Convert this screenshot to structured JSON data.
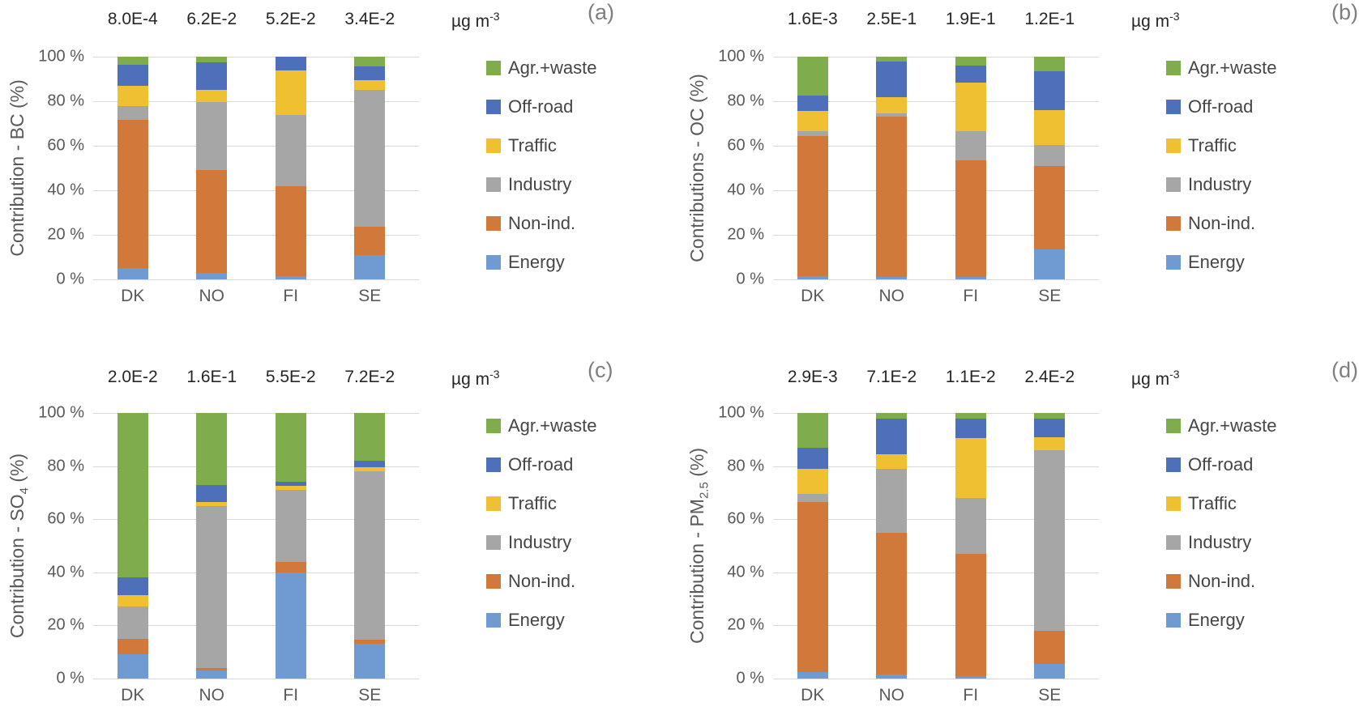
{
  "palette": {
    "energy": "#6F9BD2",
    "non_ind": "#D0793B",
    "industry": "#A6A6A6",
    "traffic": "#EFC032",
    "off_road": "#4E6FB9",
    "agr_waste": "#7FAD4C"
  },
  "unit": {
    "base": "µg m",
    "sup": "-3"
  },
  "y_axis": {
    "ticks": [
      0,
      20,
      40,
      60,
      80,
      100
    ],
    "tick_labels": [
      "0 %",
      "20 %",
      "40 %",
      "60 %",
      "80 %",
      "100 %"
    ]
  },
  "legend": {
    "position": "right",
    "items": [
      {
        "key": "agr_waste",
        "label": "Agr.+waste"
      },
      {
        "key": "off_road",
        "label": "Off-road"
      },
      {
        "key": "traffic",
        "label": "Traffic"
      },
      {
        "key": "industry",
        "label": "Industry"
      },
      {
        "key": "non_ind",
        "label": "Non-ind."
      },
      {
        "key": "energy",
        "label": "Energy"
      }
    ]
  },
  "chart_data": [
    {
      "id": "a",
      "type": "bar",
      "stacked": true,
      "panel_label": "(a)",
      "ylabel_parts": [
        {
          "text": "Contribution - BC (%)"
        }
      ],
      "categories": [
        "DK",
        "NO",
        "FI",
        "SE"
      ],
      "concentrations": [
        "8.0E-4",
        "6.2E-2",
        "5.2E-2",
        "3.4E-2"
      ],
      "ylim": [
        0,
        100
      ],
      "grid": true,
      "series": [
        {
          "key": "energy",
          "name": "Energy",
          "values": [
            5,
            3,
            1.5,
            11
          ]
        },
        {
          "key": "non_ind",
          "name": "Non-ind.",
          "values": [
            66.5,
            46,
            40.5,
            12.5
          ]
        },
        {
          "key": "industry",
          "name": "Industry",
          "values": [
            6.5,
            30.5,
            32,
            61.5
          ]
        },
        {
          "key": "traffic",
          "name": "Traffic",
          "values": [
            9,
            5.5,
            20,
            4.5
          ]
        },
        {
          "key": "off_road",
          "name": "Off-road",
          "values": [
            9.5,
            12.5,
            6,
            6
          ]
        },
        {
          "key": "agr_waste",
          "name": "Agr.+waste",
          "values": [
            3.5,
            2.5,
            0,
            4.5
          ]
        }
      ]
    },
    {
      "id": "b",
      "type": "bar",
      "stacked": true,
      "panel_label": "(b)",
      "ylabel_parts": [
        {
          "text": "Contributions - OC (%)"
        }
      ],
      "categories": [
        "DK",
        "NO",
        "FI",
        "SE"
      ],
      "concentrations": [
        "1.6E-3",
        "2.5E-1",
        "1.9E-1",
        "1.2E-1"
      ],
      "ylim": [
        0,
        100
      ],
      "grid": true,
      "series": [
        {
          "key": "energy",
          "name": "Energy",
          "values": [
            1.5,
            1,
            1,
            13.5
          ]
        },
        {
          "key": "non_ind",
          "name": "Non-ind.",
          "values": [
            63,
            72,
            52.5,
            37.5
          ]
        },
        {
          "key": "industry",
          "name": "Industry",
          "values": [
            2,
            1.5,
            13,
            9.5
          ]
        },
        {
          "key": "traffic",
          "name": "Traffic",
          "values": [
            9,
            7.5,
            22,
            15.5
          ]
        },
        {
          "key": "off_road",
          "name": "Off-road",
          "values": [
            7,
            16,
            7.5,
            17.5
          ]
        },
        {
          "key": "agr_waste",
          "name": "Agr.+waste",
          "values": [
            17.5,
            2,
            4,
            6.5
          ]
        }
      ]
    },
    {
      "id": "c",
      "type": "bar",
      "stacked": true,
      "panel_label": "(c)",
      "ylabel_parts": [
        {
          "text": "Contribution - SO"
        },
        {
          "sub": "4"
        },
        {
          "text": " (%)"
        }
      ],
      "categories": [
        "DK",
        "NO",
        "FI",
        "SE"
      ],
      "concentrations": [
        "2.0E-2",
        "1.6E-1",
        "5.5E-2",
        "7.2E-2"
      ],
      "ylim": [
        0,
        100
      ],
      "grid": true,
      "series": [
        {
          "key": "energy",
          "name": "Energy",
          "values": [
            9,
            3,
            40,
            13
          ]
        },
        {
          "key": "non_ind",
          "name": "Non-ind.",
          "values": [
            6,
            1,
            4,
            1.5
          ]
        },
        {
          "key": "industry",
          "name": "Industry",
          "values": [
            12,
            61,
            27,
            63.5
          ]
        },
        {
          "key": "traffic",
          "name": "Traffic",
          "values": [
            4.5,
            1.5,
            1.5,
            1.5
          ]
        },
        {
          "key": "off_road",
          "name": "Off-road",
          "values": [
            6.5,
            6.5,
            1.5,
            2.5
          ]
        },
        {
          "key": "agr_waste",
          "name": "Agr.+waste",
          "values": [
            62,
            27,
            26,
            18
          ]
        }
      ]
    },
    {
      "id": "d",
      "type": "bar",
      "stacked": true,
      "panel_label": "(d)",
      "ylabel_parts": [
        {
          "text": "Contribution - PM"
        },
        {
          "sub": "2.5"
        },
        {
          "text": " (%)"
        }
      ],
      "categories": [
        "DK",
        "NO",
        "FI",
        "SE"
      ],
      "concentrations": [
        "2.9E-3",
        "7.1E-2",
        "1.1E-2",
        "2.4E-2"
      ],
      "ylim": [
        0,
        100
      ],
      "grid": true,
      "series": [
        {
          "key": "energy",
          "name": "Energy",
          "values": [
            2.5,
            1.5,
            1,
            5.5
          ]
        },
        {
          "key": "non_ind",
          "name": "Non-ind.",
          "values": [
            64,
            53.5,
            46,
            12.5
          ]
        },
        {
          "key": "industry",
          "name": "Industry",
          "values": [
            3,
            24,
            21,
            68
          ]
        },
        {
          "key": "traffic",
          "name": "Traffic",
          "values": [
            9.5,
            5.5,
            22.5,
            5
          ]
        },
        {
          "key": "off_road",
          "name": "Off-road",
          "values": [
            8,
            13.5,
            7.5,
            7
          ]
        },
        {
          "key": "agr_waste",
          "name": "Agr.+waste",
          "values": [
            13,
            2,
            2,
            2
          ]
        }
      ]
    }
  ]
}
